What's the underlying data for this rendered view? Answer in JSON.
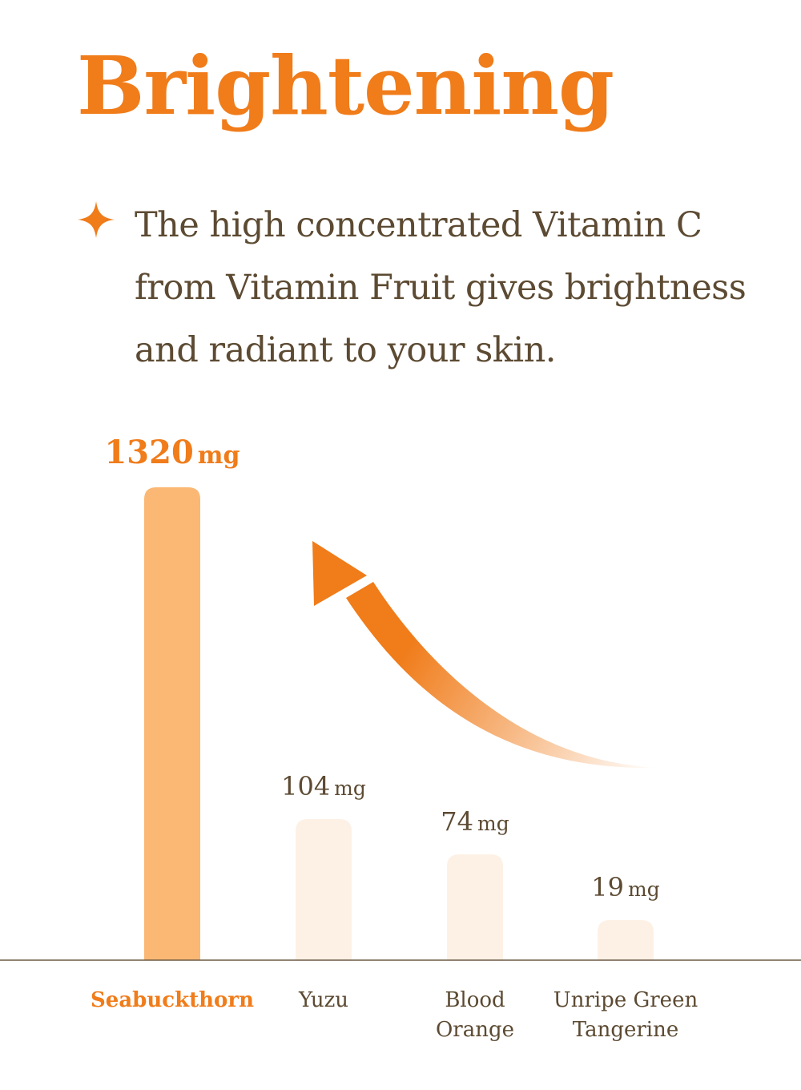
{
  "header": {
    "title": "Brightening",
    "description": "The high concentrated Vitamin C from Vitamin Fruit gives brightness and radiant to your skin.",
    "bullet_icon": "sparkle-star-icon"
  },
  "colors": {
    "accent": "#f07c1a",
    "text": "#5c4a32",
    "highlight_bar": "#fbb874",
    "muted_bar": "#fdf1e6",
    "baseline": "#6b5a45"
  },
  "chart_data": {
    "type": "bar",
    "categories": [
      "Seabuckthorn",
      "Yuzu",
      "Blood Orange",
      "Unripe Green Tangerine"
    ],
    "category_lines": [
      [
        "Seabuckthorn"
      ],
      [
        "Yuzu"
      ],
      [
        "Blood",
        "Orange"
      ],
      [
        "Unripe Green",
        "Tangerine"
      ]
    ],
    "values": [
      1320,
      104,
      74,
      19
    ],
    "value_labels": [
      "1320",
      "104",
      "74",
      "19"
    ],
    "unit": "mg",
    "highlight_index": 0,
    "title": "",
    "xlabel": "",
    "ylabel": "",
    "annotation": "arrow-pointing-to-highest-value",
    "grid": false,
    "legend": "none"
  }
}
